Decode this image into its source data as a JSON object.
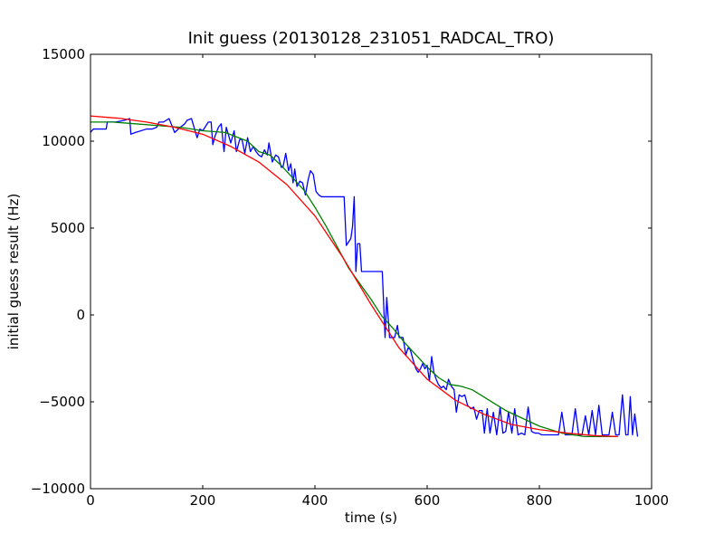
{
  "chart_data": {
    "type": "line",
    "title": "Init guess (20130128_231051_RADCAL_TRO)",
    "xlabel": "time (s)",
    "ylabel": "initial guess result (Hz)",
    "xlim": [
      0,
      1000
    ],
    "ylim": [
      -10000,
      15000
    ],
    "xticks": [
      0,
      200,
      400,
      600,
      800,
      1000
    ],
    "yticks": [
      -10000,
      -5000,
      0,
      5000,
      10000,
      15000
    ],
    "grid": false,
    "legend": "none",
    "series": [
      {
        "color": "#0000ff",
        "x": [
          0,
          5,
          15,
          28,
          30,
          45,
          60,
          70,
          72,
          80,
          100,
          110,
          118,
          122,
          130,
          140,
          150,
          160,
          168,
          172,
          180,
          190,
          195,
          200,
          210,
          215,
          218,
          222,
          228,
          233,
          238,
          242,
          250,
          256,
          260,
          266,
          270,
          275,
          280,
          285,
          290,
          295,
          300,
          305,
          310,
          315,
          318,
          324,
          330,
          335,
          340,
          343,
          348,
          353,
          357,
          361,
          364,
          368,
          373,
          378,
          383,
          388,
          392,
          397,
          402,
          407,
          412,
          417,
          421,
          425,
          430,
          435,
          440,
          443,
          447,
          452,
          456,
          460,
          464,
          467,
          470,
          473,
          476,
          480,
          483,
          487,
          490,
          494,
          498,
          502,
          506,
          509,
          512,
          517,
          520,
          525,
          528,
          533,
          538,
          542,
          547,
          550,
          553,
          557,
          562,
          566,
          570,
          575,
          580,
          584,
          588,
          592,
          596,
          600,
          604,
          608,
          612,
          616,
          620,
          625,
          629,
          634,
          638,
          643,
          648,
          652,
          657,
          662,
          667,
          672,
          678,
          683,
          688,
          693,
          698,
          702,
          707,
          712,
          718,
          724,
          730,
          735,
          740,
          745,
          751,
          756,
          762,
          768,
          774,
          780,
          786,
          792,
          798,
          804,
          810,
          816,
          822,
          828,
          834,
          840,
          846,
          852,
          858,
          864,
          870,
          876,
          882,
          888,
          894,
          900,
          906,
          912,
          918,
          924,
          930,
          936,
          942,
          948,
          954,
          958,
          962,
          966,
          970,
          975
        ],
        "y": [
          10500,
          10700,
          10700,
          10700,
          11100,
          11100,
          11200,
          11300,
          10400,
          10500,
          10700,
          10700,
          10800,
          11100,
          11100,
          11300,
          10500,
          10800,
          11000,
          11200,
          11300,
          10200,
          10700,
          10600,
          11100,
          11100,
          9800,
          10300,
          10800,
          11000,
          9400,
          10800,
          9900,
          10600,
          9400,
          10100,
          10100,
          9300,
          10200,
          9400,
          9700,
          9400,
          9200,
          9100,
          9500,
          9200,
          9900,
          8800,
          9200,
          9100,
          8500,
          8500,
          9300,
          8300,
          8700,
          7600,
          8400,
          7400,
          7700,
          7600,
          6900,
          7800,
          8300,
          8100,
          7100,
          6900,
          6800,
          6800,
          6800,
          6800,
          6800,
          6800,
          6800,
          6800,
          6800,
          6800,
          4000,
          4200,
          4400,
          5100,
          6800,
          2500,
          4100,
          4100,
          2500,
          2500,
          2500,
          2500,
          2500,
          2500,
          2500,
          2500,
          2500,
          2500,
          2500,
          -1300,
          1000,
          -1300,
          -1300,
          -1300,
          -600,
          -1300,
          -1300,
          -1300,
          -2300,
          -1900,
          -2000,
          -2600,
          -3100,
          -3300,
          -3100,
          -2800,
          -3100,
          -2900,
          -3800,
          -2400,
          -3300,
          -3700,
          -4000,
          -4200,
          -4100,
          -4300,
          -3700,
          -4100,
          -4300,
          -5600,
          -4600,
          -4700,
          -4600,
          -5200,
          -5400,
          -5300,
          -6000,
          -5500,
          -5500,
          -6800,
          -5400,
          -6800,
          -5600,
          -6900,
          -5300,
          -6800,
          -6700,
          -5600,
          -6800,
          -5400,
          -6900,
          -6800,
          -6900,
          -5300,
          -6700,
          -6800,
          -6800,
          -6900,
          -6900,
          -6900,
          -6900,
          -6900,
          -6900,
          -5600,
          -6900,
          -6900,
          -6900,
          -5400,
          -6900,
          -6900,
          -5800,
          -6900,
          -5500,
          -6900,
          -5200,
          -6900,
          -6900,
          -6900,
          -5600,
          -6900,
          -6900,
          -4600,
          -6900,
          -6900,
          -4700,
          -6900,
          -5700,
          -7000
        ]
      },
      {
        "color": "#008000",
        "x": [
          0,
          40,
          80,
          120,
          160,
          200,
          240,
          280,
          300,
          320,
          340,
          360,
          380,
          400,
          420,
          440,
          460,
          480,
          500,
          520,
          540,
          560,
          580,
          600,
          620,
          640,
          660,
          680,
          700,
          720,
          740,
          760,
          780,
          800,
          840,
          880,
          920,
          940
        ],
        "y": [
          11100,
          11100,
          11000,
          10900,
          10800,
          10600,
          10500,
          10000,
          9400,
          9200,
          8600,
          7900,
          7200,
          6200,
          5100,
          3900,
          2700,
          1800,
          900,
          -100,
          -800,
          -1600,
          -2300,
          -3000,
          -3600,
          -4000,
          -4100,
          -4300,
          -4700,
          -5100,
          -5500,
          -5800,
          -6100,
          -6400,
          -6800,
          -7000,
          -7000,
          -7000
        ]
      },
      {
        "color": "#ff0000",
        "x": [
          0,
          50,
          100,
          150,
          200,
          250,
          300,
          350,
          400,
          450,
          500,
          550,
          600,
          650,
          700,
          750,
          800,
          850,
          900,
          940
        ],
        "y": [
          11450,
          11320,
          11100,
          10800,
          10400,
          9700,
          8800,
          7500,
          5700,
          3300,
          600,
          -1900,
          -3700,
          -4900,
          -5700,
          -6300,
          -6600,
          -6800,
          -6950,
          -7000
        ]
      }
    ]
  }
}
